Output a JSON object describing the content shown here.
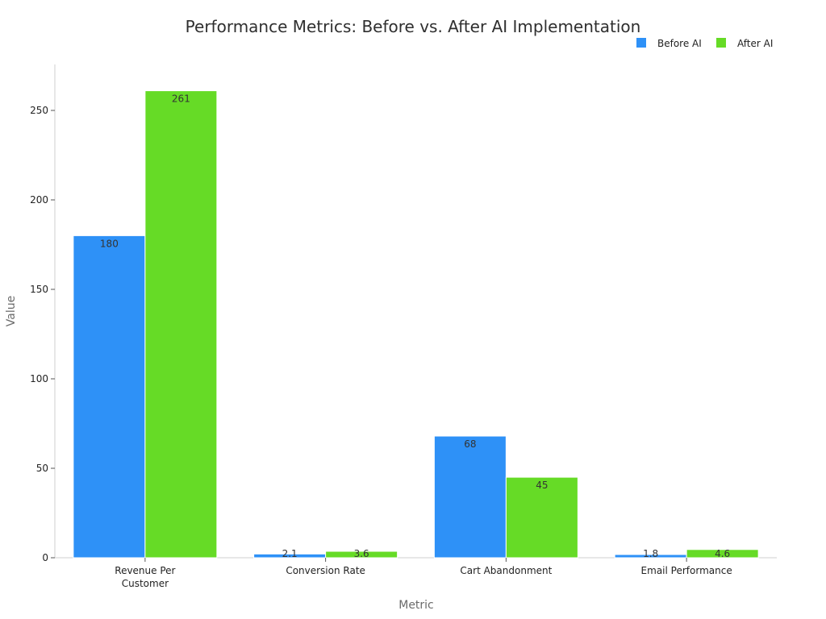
{
  "chart_data": {
    "type": "bar",
    "title": "Performance Metrics: Before vs. After AI Implementation",
    "xlabel": "Metric",
    "ylabel": "Value",
    "categories": [
      [
        "Revenue Per",
        "Customer"
      ],
      [
        "Conversion Rate"
      ],
      [
        "Cart Abandonment"
      ],
      [
        "Email Performance"
      ]
    ],
    "series": [
      {
        "name": "Before AI",
        "color": "#2e91f7",
        "values": [
          180,
          2.1,
          68,
          1.8
        ]
      },
      {
        "name": "After AI",
        "color": "#66db26",
        "values": [
          261,
          3.6,
          45,
          4.6
        ]
      }
    ],
    "ylim": [
      0,
      275
    ],
    "yticks": [
      0,
      50,
      100,
      150,
      200,
      250
    ],
    "legend_position": "top-right",
    "grid": false
  }
}
